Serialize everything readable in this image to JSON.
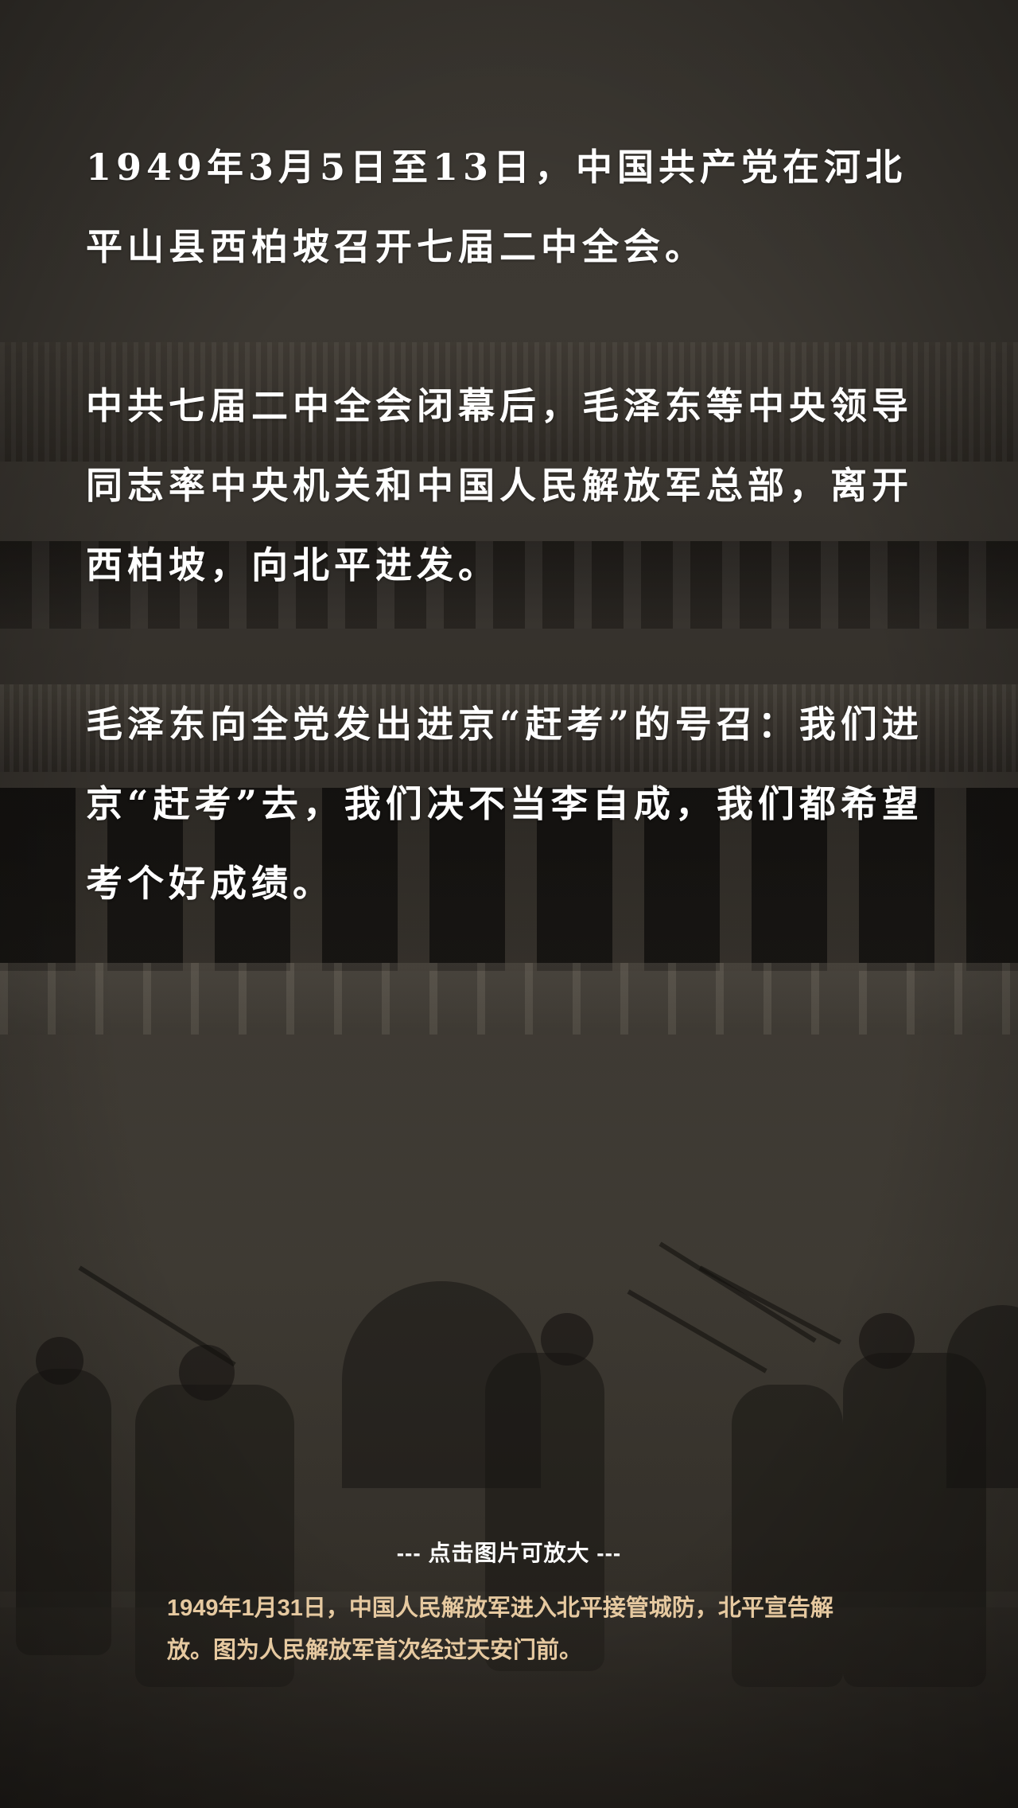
{
  "paragraphs": [
    "1949年3月5日至13日，中国共产党在河北平山县西柏坡召开七届二中全会。",
    "中共七届二中全会闭幕后，毛泽东等中央领导同志率中央机关和中国人民解放军总部，离开西柏坡，向北平进发。",
    "毛泽东向全党发出进京“赶考”的号召：我们进京“赶考”去，我们决不当李自成，我们都希望考个好成绩。"
  ],
  "photo": {
    "zoom_hint": "--- 点击图片可放大 ---",
    "caption": "1949年1月31日，中国人民解放军进入北平接管城防，北平宣告解放。图为人民解放军首次经过天安门前。"
  },
  "colors": {
    "background": "#3b3731",
    "body_text": "#ffffff",
    "caption_text": "#e6c9a0"
  }
}
